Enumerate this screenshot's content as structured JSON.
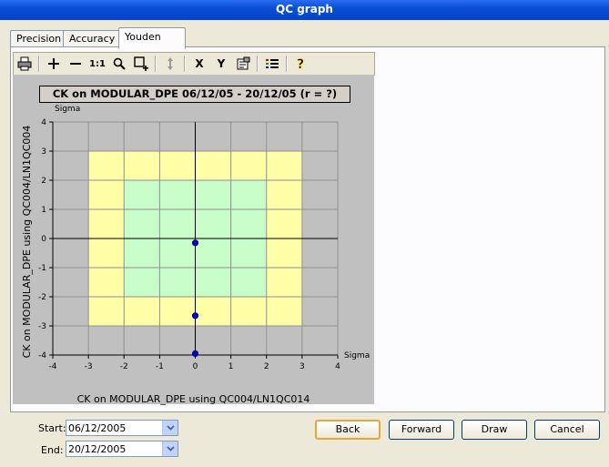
{
  "window": {
    "title": "QC graph"
  },
  "tabs": [
    {
      "label": "Precision"
    },
    {
      "label": "Accuracy"
    },
    {
      "label": "Youden",
      "active": true
    }
  ],
  "toolbar": {
    "items": [
      "print-icon",
      "zoom-in-icon",
      "zoom-out-icon",
      "zoom-reset",
      "zoom-rect-icon",
      "pan-icon",
      "x-axis",
      "y-axis",
      "properties-icon",
      "legend-icon",
      "help-icon"
    ],
    "zoom_reset_label": "1:1",
    "x_label": "X",
    "y_label": "Y"
  },
  "chart_data": {
    "type": "scatter",
    "title": "CK on MODULAR_DPE 06/12/05 - 20/12/05 (r = ?)",
    "xlabel": "CK on MODULAR_DPE using QC004/LN1QC014",
    "ylabel": "CK on MODULAR_DPE using QC004/LN1QC004",
    "x_unit": "Sigma",
    "y_unit": "Sigma",
    "xlim": [
      -4,
      4
    ],
    "ylim": [
      -4,
      4
    ],
    "ticks": [
      -4,
      -3,
      -2,
      -1,
      0,
      1,
      2,
      3,
      4
    ],
    "grid": true,
    "zones": [
      {
        "name": "3-sigma",
        "range": [
          -3,
          3
        ],
        "color": "#ffffa8"
      },
      {
        "name": "2-sigma",
        "range": [
          -2,
          2
        ],
        "color": "#c8fcc8"
      }
    ],
    "point_color": "#0000cc",
    "points": [
      {
        "x": 0,
        "y": -0.15
      },
      {
        "x": 0,
        "y": -2.65
      },
      {
        "x": 0,
        "y": -3.95
      }
    ]
  },
  "dates": {
    "start_label": "Start:",
    "start_value": "06/12/2005",
    "end_label": "End:",
    "end_value": "20/12/2005"
  },
  "buttons": {
    "back": "Back",
    "forward": "Forward",
    "draw": "Draw",
    "cancel": "Cancel"
  }
}
